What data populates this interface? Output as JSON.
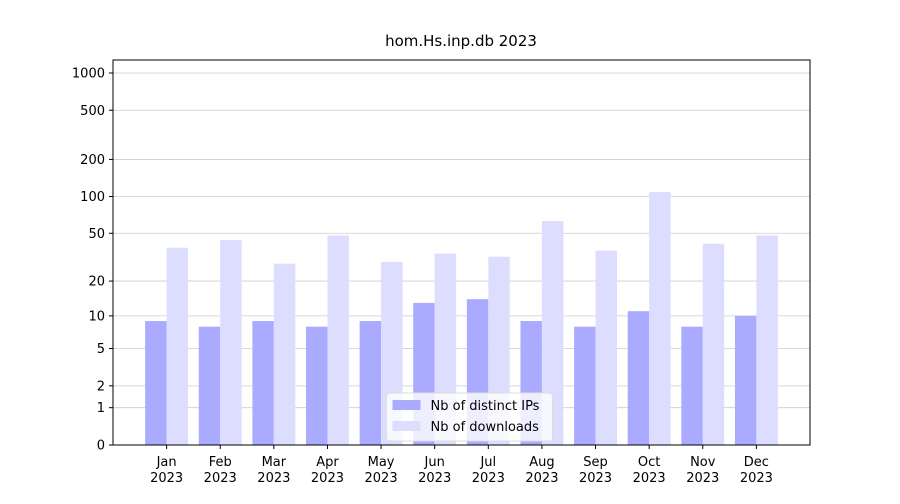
{
  "chart_data": {
    "type": "bar",
    "title": "hom.Hs.inp.db 2023",
    "categories": [
      "Jan 2023",
      "Feb 2023",
      "Mar 2023",
      "Apr 2023",
      "May 2023",
      "Jun 2023",
      "Jul 2023",
      "Aug 2023",
      "Sep 2023",
      "Oct 2023",
      "Nov 2023",
      "Dec 2023"
    ],
    "series": [
      {
        "name": "Nb of distinct IPs",
        "color": "#aaaaff",
        "values": [
          9,
          8,
          9,
          8,
          9,
          13,
          14,
          9,
          8,
          11,
          8,
          10
        ]
      },
      {
        "name": "Nb of downloads",
        "color": "#ddddff",
        "values": [
          38,
          44,
          28,
          48,
          29,
          34,
          32,
          63,
          36,
          109,
          41,
          48
        ]
      }
    ],
    "yscale": "log1p",
    "ylim": [
      0,
      1273
    ],
    "yticks": [
      0,
      1,
      2,
      5,
      10,
      20,
      50,
      100,
      200,
      500,
      1000
    ],
    "grid": true,
    "legend": "lower center"
  }
}
